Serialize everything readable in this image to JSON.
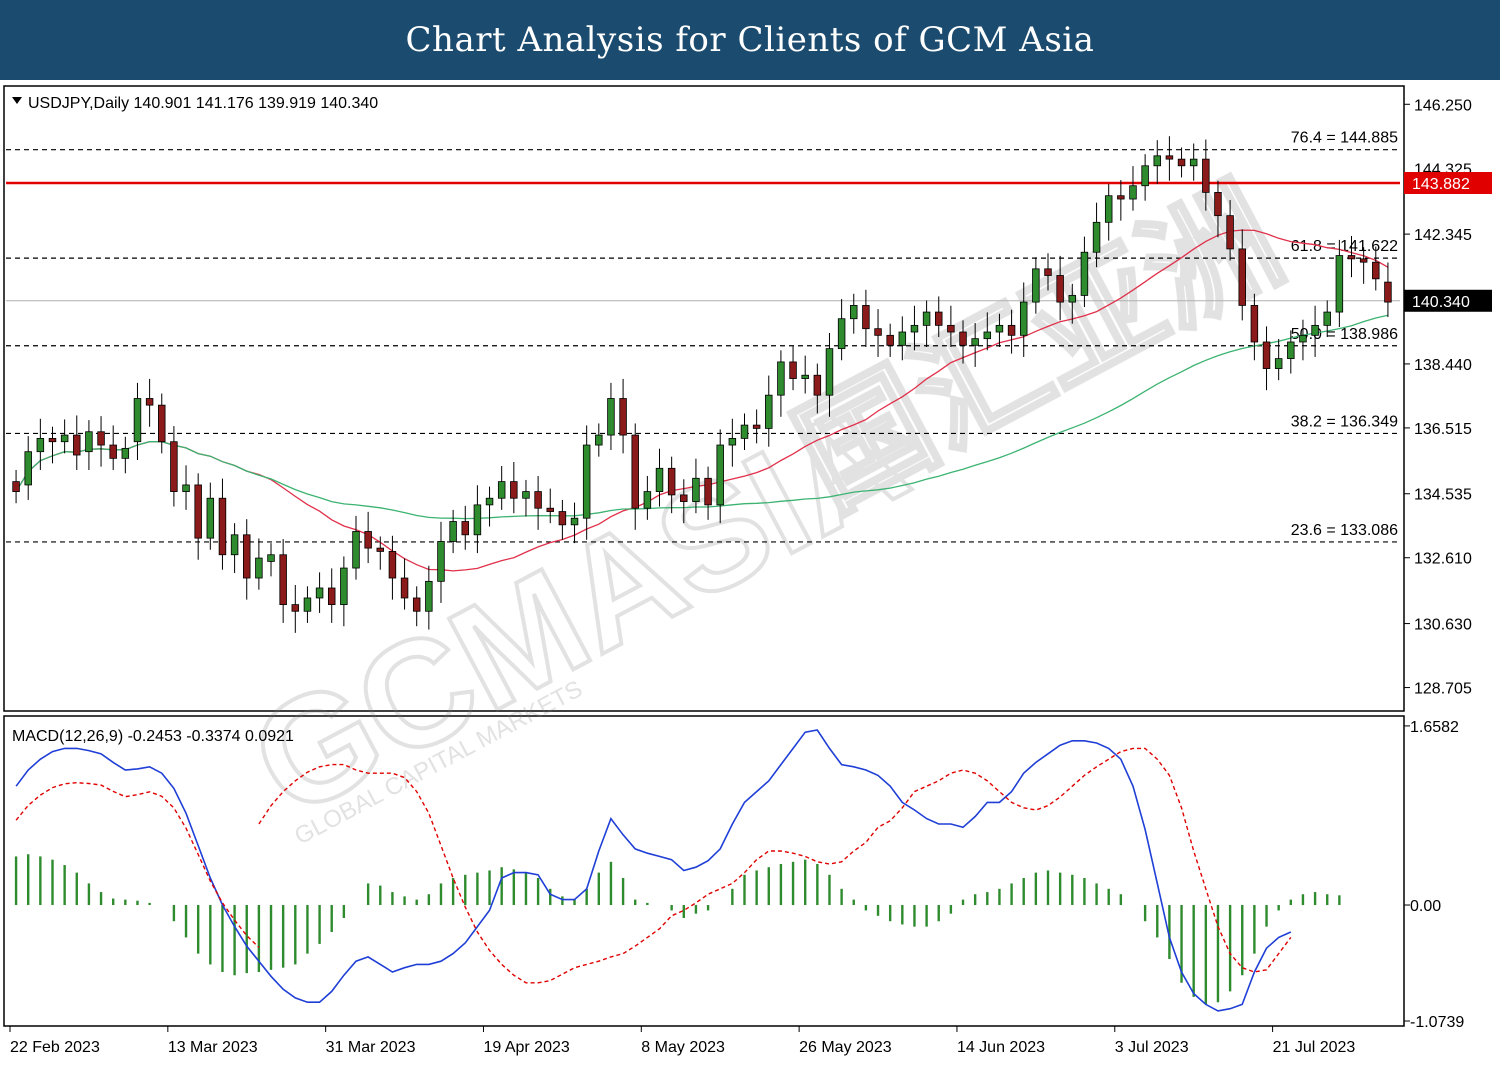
{
  "header": {
    "title": "Chart Analysis for Clients of GCM Asia"
  },
  "watermark": {
    "brand": "GCMASIA",
    "chinese": "国汇亚洲",
    "tagline": "GLOBAL CAPITAL MARKETS"
  },
  "colors": {
    "header_bg": "#1b4b6e",
    "bull_candle": "#2e8b2e",
    "bear_candle": "#8b1a1a",
    "ma_fast": "#e0304a",
    "ma_slow": "#3cb371",
    "resistance_line": "#e00000",
    "macd_line": "#1f3fd6",
    "signal_line": "#e00000",
    "histogram": "#2e8b2e",
    "price_box": "#000000",
    "resistance_box": "#e00000"
  },
  "chart_data": [
    {
      "type": "candlestick",
      "symbol_info": "USDJPY,Daily  140.901 141.176 139.919 140.340",
      "ylim": [
        128.0,
        146.8
      ],
      "y_ticks": [
        "146.250",
        "142.345",
        "138.440",
        "136.515",
        "134.535",
        "132.610",
        "130.630",
        "128.705"
      ],
      "overlapped_tick": "144.325",
      "current_price": "140.340",
      "resistance": {
        "value": 143.882,
        "label": "143.882"
      },
      "fibonacci": [
        {
          "label": "76.4 = 144.885",
          "value": 144.885
        },
        {
          "label": "61.8 = 141.622",
          "value": 141.622
        },
        {
          "label": "50.0 = 138.986",
          "value": 138.986
        },
        {
          "label": "38.2 = 136.349",
          "value": 136.349
        },
        {
          "label": "23.6 = 133.086",
          "value": 133.086
        }
      ],
      "x_labels": [
        "22 Feb 2023",
        "13 Mar 2023",
        "31 Mar 2023",
        "19 Apr 2023",
        "8 May 2023",
        "26 May 2023",
        "14 Jun 2023",
        "3 Jul 2023",
        "21 Jul 2023"
      ],
      "x_label_index": [
        0,
        13,
        26,
        39,
        52,
        65,
        78,
        91,
        104
      ],
      "closes": [
        134.6,
        135.8,
        136.2,
        136.1,
        136.3,
        135.7,
        136.4,
        136.0,
        135.6,
        135.9,
        137.4,
        137.2,
        136.1,
        134.6,
        134.8,
        133.2,
        134.4,
        132.7,
        133.3,
        132.0,
        132.6,
        132.7,
        131.2,
        131.0,
        131.4,
        131.7,
        131.2,
        132.3,
        133.4,
        132.9,
        132.8,
        132.0,
        131.4,
        131.0,
        131.9,
        133.1,
        133.7,
        133.3,
        134.2,
        134.4,
        134.9,
        134.4,
        134.6,
        134.1,
        134.0,
        133.6,
        133.8,
        136.0,
        136.3,
        137.4,
        136.3,
        134.1,
        134.6,
        135.3,
        134.5,
        134.3,
        135.0,
        134.2,
        136.0,
        136.2,
        136.6,
        136.5,
        137.5,
        138.5,
        138.0,
        138.1,
        137.5,
        138.9,
        139.8,
        140.2,
        139.5,
        139.3,
        139.0,
        139.4,
        139.6,
        140.0,
        139.6,
        139.4,
        139.0,
        139.2,
        139.4,
        139.6,
        139.3,
        140.3,
        141.3,
        141.1,
        140.3,
        140.5,
        141.8,
        142.7,
        143.5,
        143.4,
        143.8,
        144.4,
        144.7,
        144.6,
        144.4,
        144.6,
        143.6,
        142.9,
        141.9,
        140.2,
        139.1,
        138.3,
        138.6,
        139.1,
        139.3,
        139.6,
        140.0,
        141.7,
        141.6,
        141.5,
        141.0,
        140.3
      ],
      "opens": [
        134.9,
        134.8,
        135.8,
        136.2,
        136.1,
        136.3,
        135.8,
        136.4,
        136.0,
        135.6,
        136.1,
        137.4,
        137.2,
        136.1,
        134.6,
        134.8,
        133.2,
        134.4,
        132.7,
        133.3,
        132.0,
        132.5,
        132.7,
        131.2,
        131.0,
        131.4,
        131.7,
        131.2,
        132.3,
        133.4,
        132.9,
        132.8,
        132.0,
        131.4,
        131.0,
        131.9,
        133.1,
        133.7,
        133.3,
        134.2,
        134.4,
        134.9,
        134.4,
        134.6,
        134.1,
        134.0,
        133.6,
        133.8,
        136.0,
        136.3,
        137.4,
        136.3,
        134.1,
        134.6,
        135.3,
        134.5,
        134.3,
        135.0,
        134.2,
        136.0,
        136.2,
        136.6,
        136.5,
        137.5,
        138.5,
        138.0,
        138.1,
        137.5,
        138.9,
        139.8,
        140.2,
        139.5,
        139.3,
        139.0,
        139.4,
        139.6,
        140.0,
        139.6,
        139.4,
        139.0,
        139.2,
        139.4,
        139.6,
        139.3,
        140.3,
        141.3,
        141.1,
        140.3,
        140.5,
        141.8,
        142.7,
        143.5,
        143.4,
        143.8,
        144.4,
        144.7,
        144.6,
        144.4,
        144.6,
        143.6,
        142.9,
        141.9,
        140.2,
        139.1,
        138.3,
        138.6,
        139.1,
        139.3,
        139.6,
        140.0,
        141.7,
        141.6,
        141.5,
        140.901
      ],
      "macd": {
        "label": "MACD(12,26,9) -0.2453 -0.3374 0.0921",
        "ylim": [
          -1.12,
          1.75
        ],
        "y_ticks": [
          "1.6582",
          "0.00",
          "-1.0739"
        ],
        "macd_line": [
          1.1,
          1.25,
          1.35,
          1.42,
          1.45,
          1.45,
          1.43,
          1.4,
          1.32,
          1.25,
          1.26,
          1.28,
          1.22,
          1.08,
          0.85,
          0.55,
          0.25,
          0.0,
          -0.2,
          -0.38,
          -0.52,
          -0.66,
          -0.78,
          -0.86,
          -0.9,
          -0.9,
          -0.8,
          -0.65,
          -0.52,
          -0.48,
          -0.55,
          -0.62,
          -0.58,
          -0.55,
          -0.55,
          -0.52,
          -0.45,
          -0.35,
          -0.2,
          -0.05,
          0.25,
          0.3,
          0.3,
          0.28,
          0.1,
          0.05,
          0.05,
          0.15,
          0.5,
          0.8,
          0.65,
          0.52,
          0.48,
          0.45,
          0.42,
          0.32,
          0.35,
          0.41,
          0.52,
          0.75,
          0.95,
          1.05,
          1.15,
          1.3,
          1.45,
          1.6,
          1.62,
          1.45,
          1.3,
          1.28,
          1.25,
          1.2,
          1.1,
          0.95,
          0.88,
          0.8,
          0.75,
          0.75,
          0.72,
          0.82,
          0.95,
          0.95,
          1.05,
          1.22,
          1.32,
          1.4,
          1.48,
          1.52,
          1.52,
          1.5,
          1.45,
          1.35,
          1.1,
          0.7,
          0.2,
          -0.3,
          -0.62,
          -0.82,
          -0.92,
          -0.98,
          -0.96,
          -0.92,
          -0.62,
          -0.4,
          -0.3,
          -0.25
        ],
        "signal_line": [
          0.75,
          0.92,
          1.05,
          1.15,
          1.23,
          1.28,
          1.3,
          1.3,
          1.25,
          1.22,
          1.22,
          1.22,
          1.18,
          1.05,
          0.85,
          0.55,
          0.25,
          -0.02,
          -0.25,
          -0.42,
          -0.55,
          -0.65,
          -0.72,
          -0.72,
          -0.7,
          -0.64,
          -0.58,
          -0.55,
          -0.52,
          -0.48,
          -0.45,
          -0.38,
          -0.3,
          -0.22,
          -0.1,
          -0.05,
          0.02,
          0.1,
          0.15,
          0.2,
          0.3,
          0.42,
          0.5,
          0.5,
          0.48,
          0.45,
          0.4,
          0.38,
          0.4,
          0.5,
          0.58,
          0.72,
          0.78,
          0.9,
          1.05,
          1.1,
          1.15,
          1.22,
          1.25,
          1.22,
          1.15,
          1.05,
          0.95,
          0.9,
          0.88,
          0.92,
          1.0,
          1.1,
          1.2,
          1.28,
          1.35,
          1.42,
          1.45,
          1.45,
          1.35,
          1.2,
          0.9,
          0.5,
          0.15,
          -0.2,
          -0.45,
          -0.58,
          -0.62,
          -0.6,
          -0.45,
          -0.3
        ],
        "signal_line_start": 20,
        "histogram": [
          0.45,
          0.47,
          0.45,
          0.42,
          0.37,
          0.3,
          0.2,
          0.12,
          0.06,
          0.05,
          0.04,
          0.02,
          0.0,
          -0.15,
          -0.3,
          -0.45,
          -0.55,
          -0.62,
          -0.65,
          -0.63,
          -0.62,
          -0.6,
          -0.58,
          -0.55,
          -0.45,
          -0.36,
          -0.25,
          -0.12,
          0.0,
          0.2,
          0.18,
          0.12,
          0.08,
          0.05,
          0.1,
          0.2,
          0.25,
          0.28,
          0.3,
          0.32,
          0.35,
          0.33,
          0.3,
          0.25,
          0.15,
          0.08,
          0.05,
          0.15,
          0.3,
          0.4,
          0.25,
          0.05,
          0.02,
          0.0,
          -0.05,
          -0.12,
          -0.08,
          -0.05,
          0.0,
          0.15,
          0.28,
          0.32,
          0.35,
          0.38,
          0.4,
          0.42,
          0.38,
          0.28,
          0.15,
          0.05,
          -0.05,
          -0.1,
          -0.15,
          -0.18,
          -0.2,
          -0.2,
          -0.15,
          -0.08,
          0.05,
          0.1,
          0.12,
          0.15,
          0.2,
          0.25,
          0.3,
          0.32,
          0.3,
          0.28,
          0.25,
          0.2,
          0.15,
          0.1,
          0.0,
          -0.15,
          -0.3,
          -0.5,
          -0.72,
          -0.85,
          -0.92,
          -0.9,
          -0.8,
          -0.65,
          -0.45,
          -0.2,
          -0.05,
          0.05,
          0.1,
          0.12,
          0.1,
          0.09
        ]
      }
    }
  ]
}
